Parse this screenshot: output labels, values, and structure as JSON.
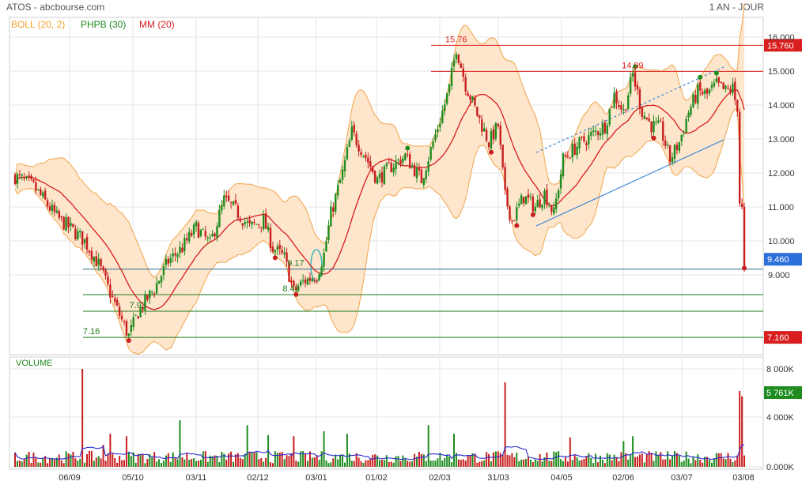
{
  "header": {
    "left_text": "ATOS - abcbourse.com",
    "right_text": "1 AN - JOUR"
  },
  "legend": [
    {
      "label": "BOLL (20, 2)",
      "color": "#f0a030"
    },
    {
      "label": "PHPB (30)",
      "color": "#1e8a1e"
    },
    {
      "label": "MM (20)",
      "color": "#d81e1e"
    }
  ],
  "colors": {
    "up": "#1f8c1f",
    "down": "#c81e1e",
    "boll_fill": "#fde6cc",
    "boll_line": "#f2a44a",
    "mm": "#d81e1e",
    "grid": "#e6e6e6",
    "volume_line": "#2a2ad0",
    "channel_line": "#3a86d8",
    "ellipse": "#38b4b4",
    "last_badge": "#2a6fdb"
  },
  "chart_data": [
    {
      "type": "candlestick",
      "title": "ATOS",
      "ylim": [
        6.8,
        16.4
      ],
      "y_ticks": [
        "9.000",
        "10.000",
        "11.000",
        "12.000",
        "13.000",
        "14.000",
        "15.000",
        "16.000"
      ],
      "x_tick_labels": [
        "06/09",
        "05/10",
        "03/11",
        "02/12",
        "03/01",
        "01/02",
        "02/03",
        "31/03",
        "04/05",
        "02/06",
        "03/07",
        "03/08"
      ],
      "grid": true,
      "legend_position": "top-left",
      "price_path": [
        {
          "i": 0,
          "v": 11.9
        },
        {
          "i": 8,
          "v": 11.6
        },
        {
          "i": 18,
          "v": 10.7
        },
        {
          "i": 25,
          "v": 10.3
        },
        {
          "i": 30,
          "v": 10.0
        },
        {
          "i": 36,
          "v": 9.3
        },
        {
          "i": 42,
          "v": 8.3
        },
        {
          "i": 47,
          "v": 7.5
        },
        {
          "i": 49,
          "v": 7.2
        },
        {
          "i": 53,
          "v": 7.9
        },
        {
          "i": 60,
          "v": 8.6
        },
        {
          "i": 66,
          "v": 9.4
        },
        {
          "i": 72,
          "v": 9.8
        },
        {
          "i": 78,
          "v": 10.4
        },
        {
          "i": 84,
          "v": 9.9
        },
        {
          "i": 90,
          "v": 11.2
        },
        {
          "i": 95,
          "v": 10.9
        },
        {
          "i": 101,
          "v": 10.4
        },
        {
          "i": 107,
          "v": 10.6
        },
        {
          "i": 111,
          "v": 9.8
        },
        {
          "i": 116,
          "v": 9.5
        },
        {
          "i": 120,
          "v": 8.5
        },
        {
          "i": 124,
          "v": 8.8
        },
        {
          "i": 130,
          "v": 9.0
        },
        {
          "i": 133,
          "v": 9.6
        },
        {
          "i": 136,
          "v": 10.8
        },
        {
          "i": 141,
          "v": 12.0
        },
        {
          "i": 145,
          "v": 13.2
        },
        {
          "i": 150,
          "v": 12.6
        },
        {
          "i": 156,
          "v": 11.8
        },
        {
          "i": 162,
          "v": 12.2
        },
        {
          "i": 168,
          "v": 12.5
        },
        {
          "i": 175,
          "v": 11.8
        },
        {
          "i": 180,
          "v": 12.9
        },
        {
          "i": 184,
          "v": 13.8
        },
        {
          "i": 187,
          "v": 14.5
        },
        {
          "i": 190,
          "v": 15.7
        },
        {
          "i": 194,
          "v": 14.6
        },
        {
          "i": 198,
          "v": 13.9
        },
        {
          "i": 204,
          "v": 12.9
        },
        {
          "i": 208,
          "v": 13.4
        },
        {
          "i": 211,
          "v": 11.3
        },
        {
          "i": 214,
          "v": 10.6
        },
        {
          "i": 219,
          "v": 11.3
        },
        {
          "i": 224,
          "v": 11.0
        },
        {
          "i": 228,
          "v": 11.4
        },
        {
          "i": 232,
          "v": 10.8
        },
        {
          "i": 236,
          "v": 12.4
        },
        {
          "i": 242,
          "v": 12.8
        },
        {
          "i": 248,
          "v": 13.1
        },
        {
          "i": 254,
          "v": 13.4
        },
        {
          "i": 258,
          "v": 14.3
        },
        {
          "i": 262,
          "v": 13.8
        },
        {
          "i": 266,
          "v": 14.9
        },
        {
          "i": 270,
          "v": 13.8
        },
        {
          "i": 274,
          "v": 13.4
        },
        {
          "i": 278,
          "v": 13.3
        },
        {
          "i": 282,
          "v": 12.4
        },
        {
          "i": 286,
          "v": 12.9
        },
        {
          "i": 290,
          "v": 13.8
        },
        {
          "i": 294,
          "v": 14.4
        },
        {
          "i": 298,
          "v": 14.3
        },
        {
          "i": 302,
          "v": 14.6
        },
        {
          "i": 306,
          "v": 14.4
        },
        {
          "i": 309,
          "v": 14.5
        },
        {
          "i": 311,
          "v": 13.8
        },
        {
          "i": 312,
          "v": 11.1
        },
        {
          "i": 313,
          "v": 11.0
        },
        {
          "i": 314,
          "v": 9.2
        }
      ],
      "last_price": {
        "label": "9.460",
        "value": 9.46
      },
      "horizontal_levels": [
        {
          "value": 15.76,
          "color": "#d81e1e",
          "badge": "15.760",
          "badge_color": "#d81e1e"
        },
        {
          "value": 14.99,
          "color": "#d81e1e"
        },
        {
          "value": 9.17,
          "color": "#2a6a8a"
        },
        {
          "value": 8.42,
          "color": "#1e7a1e"
        },
        {
          "value": 7.93,
          "color": "#1e7a1e"
        },
        {
          "value": 7.16,
          "color": "#1e7a1e",
          "badge": "7.160",
          "badge_color": "#d81e1e"
        }
      ],
      "annotations": [
        {
          "text": "15.76",
          "i": 190,
          "v": 15.76,
          "color": "#d81e1e"
        },
        {
          "text": "14.99",
          "i": 266,
          "v": 14.99,
          "color": "#d81e1e"
        },
        {
          "text": "9.17",
          "i": 122,
          "v": 9.17,
          "color": "#1e7a1e"
        },
        {
          "text": "8.42",
          "i": 120,
          "v": 8.42,
          "color": "#1e7a1e"
        },
        {
          "text": "7.93",
          "i": 54,
          "v": 7.93,
          "color": "#1e7a1e"
        },
        {
          "text": "7.16",
          "i": 34,
          "v": 7.16,
          "color": "#1e7a1e"
        }
      ]
    },
    {
      "type": "bar",
      "title": "VOLUME",
      "ylim": [
        0,
        9000
      ],
      "y_ticks": [
        "0.000K",
        "4 000K",
        "8 000K"
      ],
      "last_volume": {
        "label": "5 761K",
        "value": 5761
      },
      "spikes": [
        {
          "i": 29,
          "v": 8000
        },
        {
          "i": 38,
          "v": 1800
        },
        {
          "i": 41,
          "v": 2700
        },
        {
          "i": 48,
          "v": 2500
        },
        {
          "i": 71,
          "v": 3800
        },
        {
          "i": 100,
          "v": 3400
        },
        {
          "i": 109,
          "v": 2600
        },
        {
          "i": 120,
          "v": 2500
        },
        {
          "i": 133,
          "v": 2900
        },
        {
          "i": 143,
          "v": 2700
        },
        {
          "i": 178,
          "v": 3400
        },
        {
          "i": 189,
          "v": 2700
        },
        {
          "i": 211,
          "v": 6900
        },
        {
          "i": 239,
          "v": 2400
        },
        {
          "i": 262,
          "v": 2100
        },
        {
          "i": 266,
          "v": 2500
        },
        {
          "i": 312,
          "v": 6200
        },
        {
          "i": 313,
          "v": 5761
        }
      ]
    }
  ]
}
